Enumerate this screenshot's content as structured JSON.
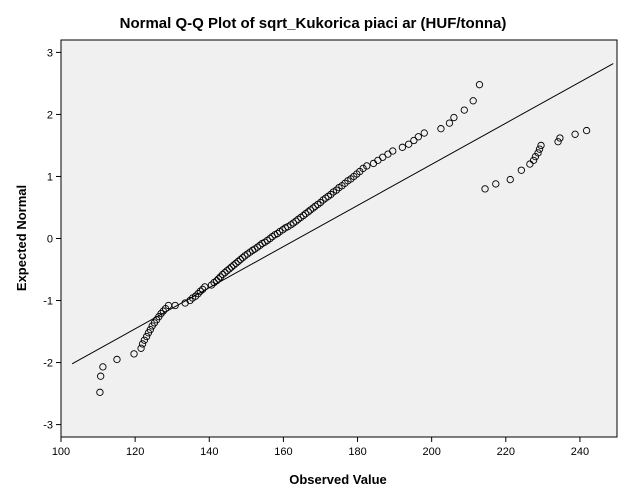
{
  "chart_data": {
    "type": "scatter",
    "title": "Normal Q-Q Plot of sqrt_Kukorica piaci ar (HUF/tonna)",
    "xlabel": "Observed Value",
    "ylabel": "Expected Normal",
    "xlim": [
      100,
      250
    ],
    "ylim": [
      -3.2,
      3.2
    ],
    "x_ticks": [
      100,
      120,
      140,
      160,
      180,
      200,
      220,
      240
    ],
    "y_ticks": [
      -3,
      -2,
      -1,
      0,
      1,
      2,
      3
    ],
    "grid": false,
    "reference_line": {
      "x": [
        103,
        249
      ],
      "y": [
        -2.02,
        2.82
      ]
    },
    "series": [
      {
        "marker": "open-circle",
        "x": [
          110.5,
          110.7,
          111.3,
          115.1,
          119.7,
          121.6,
          122.0,
          122.5,
          123.1,
          123.6,
          124.1,
          124.6,
          125.2,
          125.8,
          126.4,
          127.0,
          127.6,
          128.2,
          129.0,
          130.8,
          133.5,
          134.8,
          135.5,
          136.3,
          137.0,
          137.6,
          138.2,
          138.8,
          140.6,
          141.3,
          142.0,
          142.5,
          143.0,
          143.6,
          144.2,
          144.8,
          145.4,
          146.0,
          146.6,
          147.2,
          147.8,
          148.4,
          149.0,
          149.6,
          150.3,
          151.0,
          151.7,
          152.3,
          153.0,
          153.7,
          154.3,
          155.0,
          155.7,
          156.4,
          157.0,
          157.7,
          158.4,
          159.0,
          159.8,
          160.5,
          161.2,
          162.0,
          162.7,
          163.4,
          164.0,
          164.7,
          165.4,
          166.0,
          166.7,
          167.3,
          168.0,
          168.6,
          169.3,
          170.0,
          170.7,
          171.4,
          172.1,
          172.8,
          173.5,
          174.3,
          175.0,
          175.8,
          176.6,
          177.4,
          178.2,
          179.0,
          179.8,
          180.6,
          181.5,
          182.5,
          184.3,
          185.5,
          186.8,
          188.2,
          189.5,
          192.1,
          193.8,
          195.2,
          196.4,
          198.0,
          202.5,
          204.8,
          206.0,
          208.8,
          211.2,
          212.9,
          214.4,
          217.3,
          221.2,
          224.2,
          226.5,
          227.5,
          228.0,
          228.7,
          229.1,
          229.5,
          234.1,
          234.6,
          238.7,
          241.8
        ],
        "y": [
          -2.48,
          -2.22,
          -2.07,
          -1.95,
          -1.86,
          -1.77,
          -1.7,
          -1.64,
          -1.58,
          -1.52,
          -1.47,
          -1.41,
          -1.36,
          -1.31,
          -1.26,
          -1.21,
          -1.17,
          -1.13,
          -1.08,
          -1.08,
          -1.04,
          -1.0,
          -0.96,
          -0.93,
          -0.89,
          -0.85,
          -0.82,
          -0.78,
          -0.75,
          -0.71,
          -0.68,
          -0.65,
          -0.62,
          -0.58,
          -0.55,
          -0.52,
          -0.49,
          -0.46,
          -0.43,
          -0.4,
          -0.37,
          -0.34,
          -0.31,
          -0.28,
          -0.25,
          -0.22,
          -0.19,
          -0.17,
          -0.14,
          -0.11,
          -0.08,
          -0.06,
          -0.03,
          0.0,
          0.03,
          0.06,
          0.08,
          0.11,
          0.14,
          0.17,
          0.19,
          0.22,
          0.25,
          0.28,
          0.31,
          0.34,
          0.37,
          0.4,
          0.43,
          0.46,
          0.49,
          0.52,
          0.55,
          0.58,
          0.62,
          0.65,
          0.68,
          0.71,
          0.75,
          0.78,
          0.82,
          0.85,
          0.89,
          0.93,
          0.96,
          1.0,
          1.04,
          1.08,
          1.13,
          1.17,
          1.21,
          1.26,
          1.31,
          1.36,
          1.41,
          1.47,
          1.52,
          1.58,
          1.64,
          1.7,
          1.77,
          1.86,
          1.95,
          2.07,
          2.22,
          2.48,
          0.8,
          0.88,
          0.95,
          1.1,
          1.2,
          1.26,
          1.32,
          1.38,
          1.44,
          1.5,
          1.56,
          1.62,
          1.68,
          1.74
        ]
      }
    ]
  }
}
